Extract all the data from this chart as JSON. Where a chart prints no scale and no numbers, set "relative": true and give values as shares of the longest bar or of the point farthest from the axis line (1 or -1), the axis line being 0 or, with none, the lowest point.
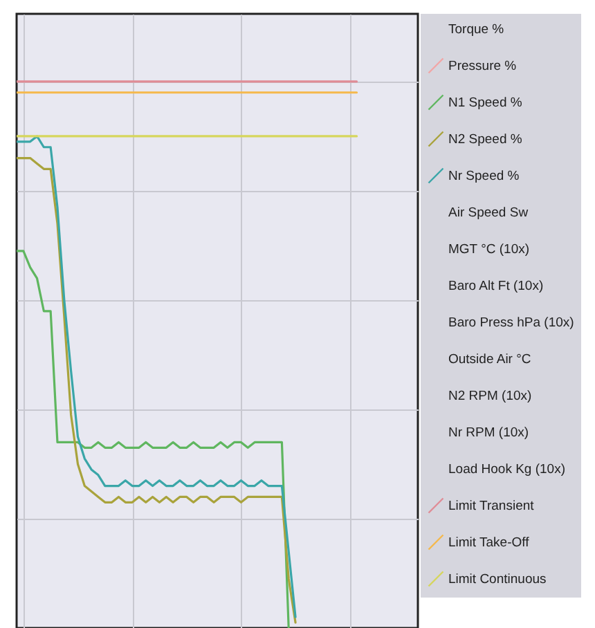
{
  "chart_data": {
    "type": "line",
    "relative": true,
    "grid": true,
    "legend": "right",
    "marker": "none",
    "line_style": "solid",
    "categories": [
      null,
      null,
      null,
      null,
      null,
      null,
      null,
      null,
      null,
      null,
      null,
      null,
      null,
      null,
      null,
      null,
      null,
      null,
      null,
      null,
      null,
      null,
      null,
      null,
      null,
      null,
      null,
      null,
      null,
      null,
      null,
      null,
      null,
      null,
      null,
      null,
      null,
      null,
      null,
      null,
      null,
      null,
      null,
      null,
      null,
      null,
      null,
      null,
      null,
      null,
      null,
      null,
      null,
      null,
      null,
      null,
      null,
      null,
      null,
      null
    ],
    "series": [
      {
        "name": "Torque %",
        "color": null,
        "values": [
          null,
          null,
          null,
          null,
          null,
          null,
          null,
          null,
          null,
          null,
          null,
          null,
          null,
          null,
          null,
          null,
          null,
          null,
          null,
          null,
          null,
          null,
          null,
          null,
          null,
          null,
          null,
          null,
          null,
          null,
          null,
          null,
          null,
          null,
          null,
          null,
          null,
          null,
          null,
          null,
          null,
          null,
          null,
          null,
          null,
          null,
          null,
          null,
          null,
          null,
          null,
          null,
          null,
          null,
          null,
          null,
          null,
          null,
          null,
          null
        ]
      },
      {
        "name": "Pressure %",
        "color": "#f2a6a6",
        "values": [
          null,
          null,
          null,
          null,
          null,
          null,
          null,
          null,
          null,
          null,
          null,
          null,
          null,
          null,
          null,
          null,
          null,
          null,
          null,
          null,
          null,
          null,
          null,
          null,
          null,
          null,
          null,
          null,
          null,
          null,
          null,
          null,
          null,
          null,
          null,
          null,
          null,
          null,
          null,
          null,
          null,
          null,
          null,
          null,
          null,
          null,
          null,
          null,
          null,
          null,
          null,
          null,
          null,
          null,
          null,
          null,
          null,
          null,
          null,
          null
        ]
      },
      {
        "name": "N1 Speed %",
        "color": "#5fb65f",
        "values": [
          0.69,
          0.69,
          0.66,
          0.64,
          0.58,
          0.58,
          0.34,
          0.34,
          0.34,
          0.34,
          0.33,
          0.33,
          0.34,
          0.33,
          0.33,
          0.34,
          0.33,
          0.33,
          0.33,
          0.34,
          0.33,
          0.33,
          0.33,
          0.34,
          0.33,
          0.33,
          0.34,
          0.33,
          0.33,
          0.33,
          0.34,
          0.33,
          0.34,
          0.34,
          0.33,
          0.34,
          0.34,
          0.34,
          0.34,
          0.34,
          0,
          null,
          null,
          null,
          null,
          null,
          null,
          null,
          null,
          null,
          null,
          null,
          null,
          null,
          null,
          null,
          null,
          null,
          null,
          null
        ]
      },
      {
        "name": "N2 Speed %",
        "color": "#a9a33c",
        "values": [
          0.86,
          0.86,
          0.86,
          0.85,
          0.84,
          0.84,
          0.74,
          0.57,
          0.39,
          0.3,
          0.26,
          0.25,
          0.24,
          0.23,
          0.23,
          0.24,
          0.23,
          0.23,
          0.24,
          0.23,
          0.24,
          0.23,
          0.24,
          0.23,
          0.24,
          0.24,
          0.23,
          0.24,
          0.24,
          0.23,
          0.24,
          0.24,
          0.24,
          0.23,
          0.24,
          0.24,
          0.24,
          0.24,
          0.24,
          0.24,
          0.09,
          0.01,
          null,
          null,
          null,
          null,
          null,
          null,
          null,
          null,
          null,
          null,
          null,
          null,
          null,
          null,
          null,
          null,
          null,
          null
        ]
      },
      {
        "name": "Nr Speed %",
        "color": "#3aa6a8",
        "values": [
          0.89,
          0.89,
          0.89,
          0.9,
          0.88,
          0.88,
          0.77,
          0.6,
          0.47,
          0.35,
          0.31,
          0.29,
          0.28,
          0.26,
          0.26,
          0.26,
          0.27,
          0.26,
          0.26,
          0.27,
          0.26,
          0.27,
          0.26,
          0.26,
          0.27,
          0.26,
          0.26,
          0.27,
          0.26,
          0.26,
          0.27,
          0.26,
          0.26,
          0.27,
          0.26,
          0.26,
          0.27,
          0.26,
          0.26,
          0.26,
          0.14,
          0.02,
          null,
          null,
          null,
          null,
          null,
          null,
          null,
          null,
          null,
          null,
          null,
          null,
          null,
          null,
          null,
          null,
          null,
          null
        ]
      },
      {
        "name": "Air Speed Sw",
        "color": null,
        "values": [
          null,
          null,
          null,
          null,
          null,
          null,
          null,
          null,
          null,
          null,
          null,
          null,
          null,
          null,
          null,
          null,
          null,
          null,
          null,
          null,
          null,
          null,
          null,
          null,
          null,
          null,
          null,
          null,
          null,
          null,
          null,
          null,
          null,
          null,
          null,
          null,
          null,
          null,
          null,
          null,
          null,
          null,
          null,
          null,
          null,
          null,
          null,
          null,
          null,
          null,
          null,
          null,
          null,
          null,
          null,
          null,
          null,
          null,
          null,
          null
        ]
      },
      {
        "name": "MGT °C (10x)",
        "color": null,
        "values": [
          null,
          null,
          null,
          null,
          null,
          null,
          null,
          null,
          null,
          null,
          null,
          null,
          null,
          null,
          null,
          null,
          null,
          null,
          null,
          null,
          null,
          null,
          null,
          null,
          null,
          null,
          null,
          null,
          null,
          null,
          null,
          null,
          null,
          null,
          null,
          null,
          null,
          null,
          null,
          null,
          null,
          null,
          null,
          null,
          null,
          null,
          null,
          null,
          null,
          null,
          null,
          null,
          null,
          null,
          null,
          null,
          null,
          null,
          null,
          null
        ]
      },
      {
        "name": "Baro Alt Ft (10x)",
        "color": null,
        "values": [
          null,
          null,
          null,
          null,
          null,
          null,
          null,
          null,
          null,
          null,
          null,
          null,
          null,
          null,
          null,
          null,
          null,
          null,
          null,
          null,
          null,
          null,
          null,
          null,
          null,
          null,
          null,
          null,
          null,
          null,
          null,
          null,
          null,
          null,
          null,
          null,
          null,
          null,
          null,
          null,
          null,
          null,
          null,
          null,
          null,
          null,
          null,
          null,
          null,
          null,
          null,
          null,
          null,
          null,
          null,
          null,
          null,
          null,
          null,
          null
        ]
      },
      {
        "name": "Baro Press hPa (10x)",
        "color": null,
        "values": [
          null,
          null,
          null,
          null,
          null,
          null,
          null,
          null,
          null,
          null,
          null,
          null,
          null,
          null,
          null,
          null,
          null,
          null,
          null,
          null,
          null,
          null,
          null,
          null,
          null,
          null,
          null,
          null,
          null,
          null,
          null,
          null,
          null,
          null,
          null,
          null,
          null,
          null,
          null,
          null,
          null,
          null,
          null,
          null,
          null,
          null,
          null,
          null,
          null,
          null,
          null,
          null,
          null,
          null,
          null,
          null,
          null,
          null,
          null,
          null
        ]
      },
      {
        "name": "Outside Air °C",
        "color": null,
        "values": [
          null,
          null,
          null,
          null,
          null,
          null,
          null,
          null,
          null,
          null,
          null,
          null,
          null,
          null,
          null,
          null,
          null,
          null,
          null,
          null,
          null,
          null,
          null,
          null,
          null,
          null,
          null,
          null,
          null,
          null,
          null,
          null,
          null,
          null,
          null,
          null,
          null,
          null,
          null,
          null,
          null,
          null,
          null,
          null,
          null,
          null,
          null,
          null,
          null,
          null,
          null,
          null,
          null,
          null,
          null,
          null,
          null,
          null,
          null,
          null
        ]
      },
      {
        "name": "N2 RPM (10x)",
        "color": null,
        "values": [
          null,
          null,
          null,
          null,
          null,
          null,
          null,
          null,
          null,
          null,
          null,
          null,
          null,
          null,
          null,
          null,
          null,
          null,
          null,
          null,
          null,
          null,
          null,
          null,
          null,
          null,
          null,
          null,
          null,
          null,
          null,
          null,
          null,
          null,
          null,
          null,
          null,
          null,
          null,
          null,
          null,
          null,
          null,
          null,
          null,
          null,
          null,
          null,
          null,
          null,
          null,
          null,
          null,
          null,
          null,
          null,
          null,
          null,
          null,
          null
        ]
      },
      {
        "name": "Nr RPM (10x)",
        "color": null,
        "values": [
          null,
          null,
          null,
          null,
          null,
          null,
          null,
          null,
          null,
          null,
          null,
          null,
          null,
          null,
          null,
          null,
          null,
          null,
          null,
          null,
          null,
          null,
          null,
          null,
          null,
          null,
          null,
          null,
          null,
          null,
          null,
          null,
          null,
          null,
          null,
          null,
          null,
          null,
          null,
          null,
          null,
          null,
          null,
          null,
          null,
          null,
          null,
          null,
          null,
          null,
          null,
          null,
          null,
          null,
          null,
          null,
          null,
          null,
          null,
          null
        ]
      },
      {
        "name": "Load Hook Kg (10x)",
        "color": null,
        "values": [
          null,
          null,
          null,
          null,
          null,
          null,
          null,
          null,
          null,
          null,
          null,
          null,
          null,
          null,
          null,
          null,
          null,
          null,
          null,
          null,
          null,
          null,
          null,
          null,
          null,
          null,
          null,
          null,
          null,
          null,
          null,
          null,
          null,
          null,
          null,
          null,
          null,
          null,
          null,
          null,
          null,
          null,
          null,
          null,
          null,
          null,
          null,
          null,
          null,
          null,
          null,
          null,
          null,
          null,
          null,
          null,
          null,
          null,
          null,
          null
        ]
      },
      {
        "name": "Limit Transient",
        "color": "#e08c96",
        "values": [
          1,
          1,
          1,
          1,
          1,
          1,
          1,
          1,
          1,
          1,
          1,
          1,
          1,
          1,
          1,
          1,
          1,
          1,
          1,
          1,
          1,
          1,
          1,
          1,
          1,
          1,
          1,
          1,
          1,
          1,
          1,
          1,
          1,
          1,
          1,
          1,
          1,
          1,
          1,
          1,
          1,
          1,
          1,
          1,
          1,
          1,
          1,
          1,
          1,
          1,
          1,
          null,
          null,
          null,
          null,
          null,
          null,
          null,
          null,
          null
        ]
      },
      {
        "name": "Limit Take-Off",
        "color": "#f5b94c",
        "values": [
          0.98,
          0.98,
          0.98,
          0.98,
          0.98,
          0.98,
          0.98,
          0.98,
          0.98,
          0.98,
          0.98,
          0.98,
          0.98,
          0.98,
          0.98,
          0.98,
          0.98,
          0.98,
          0.98,
          0.98,
          0.98,
          0.98,
          0.98,
          0.98,
          0.98,
          0.98,
          0.98,
          0.98,
          0.98,
          0.98,
          0.98,
          0.98,
          0.98,
          0.98,
          0.98,
          0.98,
          0.98,
          0.98,
          0.98,
          0.98,
          0.98,
          0.98,
          0.98,
          0.98,
          0.98,
          0.98,
          0.98,
          0.98,
          0.98,
          0.98,
          0.98,
          null,
          null,
          null,
          null,
          null,
          null,
          null,
          null,
          null
        ]
      },
      {
        "name": "Limit Continuous",
        "color": "#d6d65c",
        "values": [
          0.9,
          0.9,
          0.9,
          0.9,
          0.9,
          0.9,
          0.9,
          0.9,
          0.9,
          0.9,
          0.9,
          0.9,
          0.9,
          0.9,
          0.9,
          0.9,
          0.9,
          0.9,
          0.9,
          0.9,
          0.9,
          0.9,
          0.9,
          0.9,
          0.9,
          0.9,
          0.9,
          0.9,
          0.9,
          0.9,
          0.9,
          0.9,
          0.9,
          0.9,
          0.9,
          0.9,
          0.9,
          0.9,
          0.9,
          0.9,
          0.9,
          0.9,
          0.9,
          0.9,
          0.9,
          0.9,
          0.9,
          0.9,
          0.9,
          0.9,
          0.9,
          null,
          null,
          null,
          null,
          null,
          null,
          null,
          null,
          null
        ]
      }
    ]
  }
}
